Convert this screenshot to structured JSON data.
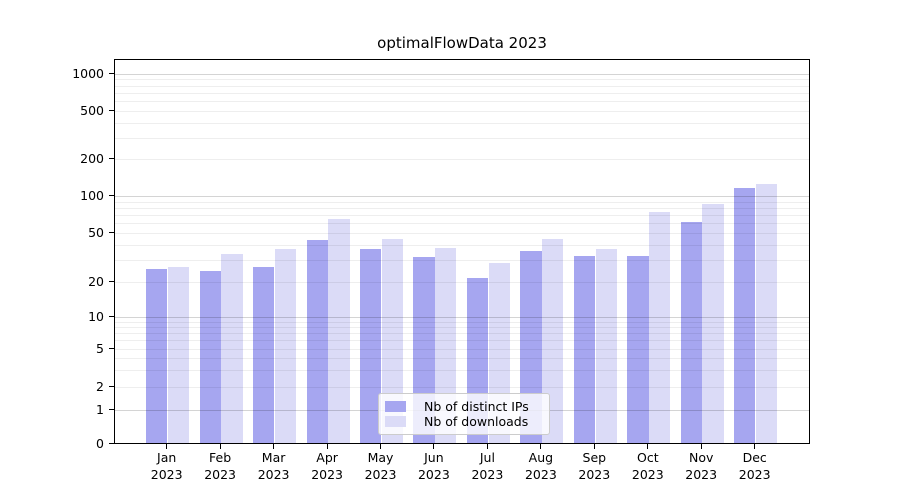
{
  "title": "optimalFlowData 2023",
  "chart_data": {
    "type": "bar",
    "title": "optimalFlowData 2023",
    "year_label": "2023",
    "months": [
      "Jan",
      "Feb",
      "Mar",
      "Apr",
      "May",
      "Jun",
      "Jul",
      "Aug",
      "Sep",
      "Oct",
      "Nov",
      "Dec"
    ],
    "categories": [
      "Jan 2023",
      "Feb 2023",
      "Mar 2023",
      "Apr 2023",
      "May 2023",
      "Jun 2023",
      "Jul 2023",
      "Aug 2023",
      "Sep 2023",
      "Oct 2023",
      "Nov 2023",
      "Dec 2023"
    ],
    "series": [
      {
        "name": "Nb of distinct IPs",
        "color": "#a6a6f0",
        "values": [
          25,
          24,
          26,
          43,
          36,
          31,
          21,
          35,
          32,
          32,
          60,
          113
        ]
      },
      {
        "name": "Nb of downloads",
        "color": "#dbdbf7",
        "values": [
          26,
          33,
          36,
          64,
          44,
          37,
          28,
          44,
          36,
          73,
          85,
          124
        ]
      }
    ],
    "y_axis": {
      "scale": "symlog",
      "tick_labels": [
        "0",
        "1",
        "2",
        "5",
        "10",
        "20",
        "50",
        "100",
        "200",
        "500",
        "1000"
      ],
      "tick_values": [
        0,
        1,
        2,
        5,
        10,
        20,
        50,
        100,
        200,
        500,
        1000
      ]
    },
    "legend": {
      "entries": [
        "Nb of distinct IPs",
        "Nb of downloads"
      ],
      "position": "lower center"
    },
    "grid": "both (major + minor), horizontal only"
  }
}
